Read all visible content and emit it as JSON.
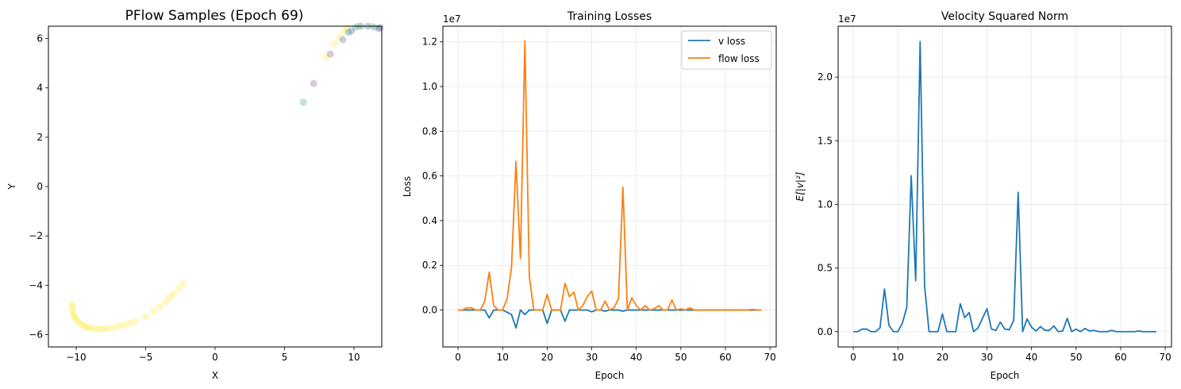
{
  "colors": {
    "v_loss": "#1f77b4",
    "flow_loss": "#ff7f0e",
    "norm": "#1f77b4",
    "yellow": "#fde725",
    "teal": "#21918c",
    "purple": "#6b3d8a",
    "blue": "#3b528b",
    "green": "#5ec962",
    "grid": "#e6e6e6"
  },
  "chart_data": [
    {
      "type": "scatter",
      "title": "PFlow Samples (Epoch 69)",
      "xlabel": "X",
      "ylabel": "Y",
      "xlim": [
        -12,
        12
      ],
      "ylim": [
        -6.5,
        6.5
      ],
      "xticks": [
        -10,
        -5,
        0,
        5,
        10
      ],
      "xtick_labels": [
        "−10",
        "−5",
        "0",
        "5",
        "10"
      ],
      "yticks": [
        -6,
        -4,
        -2,
        0,
        2,
        4,
        6
      ],
      "ytick_labels": [
        "−6",
        "−4",
        "−2",
        "0",
        "2",
        "4",
        "6"
      ],
      "grid": false,
      "series": [
        {
          "color": "yellow",
          "points": [
            [
              -10.3,
              -4.75
            ],
            [
              -10.3,
              -4.9
            ],
            [
              -10.25,
              -5.05
            ],
            [
              -10.2,
              -5.2
            ],
            [
              -10.1,
              -5.3
            ],
            [
              -10.0,
              -5.4
            ],
            [
              -9.8,
              -5.5
            ],
            [
              -9.6,
              -5.58
            ],
            [
              -9.4,
              -5.65
            ],
            [
              -9.2,
              -5.7
            ],
            [
              -9.0,
              -5.73
            ],
            [
              -8.7,
              -5.76
            ],
            [
              -8.4,
              -5.77
            ],
            [
              -8.1,
              -5.77
            ],
            [
              -7.8,
              -5.75
            ],
            [
              -7.4,
              -5.72
            ],
            [
              -7.0,
              -5.68
            ],
            [
              -6.6,
              -5.62
            ],
            [
              -6.2,
              -5.55
            ],
            [
              -5.8,
              -5.47
            ],
            [
              -5.0,
              -5.28
            ],
            [
              -4.4,
              -5.05
            ],
            [
              -4.0,
              -4.88
            ],
            [
              -3.6,
              -4.68
            ],
            [
              -3.3,
              -4.5
            ],
            [
              -3.0,
              -4.35
            ],
            [
              -2.6,
              -4.12
            ],
            [
              -2.3,
              -3.92
            ],
            [
              8.0,
              5.25
            ],
            [
              8.6,
              5.8
            ],
            [
              9.0,
              6.05
            ],
            [
              9.3,
              6.3
            ],
            [
              9.5,
              6.45
            ]
          ]
        },
        {
          "color": "teal",
          "points": [
            [
              6.35,
              3.42
            ],
            [
              9.6,
              6.25
            ],
            [
              10.1,
              6.45
            ],
            [
              11.5,
              6.45
            ]
          ]
        },
        {
          "color": "purple",
          "points": [
            [
              7.1,
              4.18
            ],
            [
              8.3,
              5.37
            ],
            [
              11.8,
              6.4
            ]
          ]
        },
        {
          "color": "blue",
          "points": [
            [
              9.2,
              5.95
            ],
            [
              9.8,
              6.3
            ],
            [
              10.5,
              6.5
            ],
            [
              11.0,
              6.5
            ],
            [
              11.9,
              6.45
            ]
          ]
        },
        {
          "color": "green",
          "points": [
            [
              10.3,
              6.5
            ],
            [
              11.3,
              6.5
            ]
          ]
        }
      ]
    },
    {
      "type": "line",
      "title": "Training Losses",
      "xlabel": "Epoch",
      "ylabel": "Loss",
      "scale_label": "1e7",
      "xlim": [
        -3.4,
        71.4
      ],
      "ylim": [
        -0.165,
        1.27
      ],
      "xticks": [
        0,
        10,
        20,
        30,
        40,
        50,
        60,
        70
      ],
      "yticks": [
        0.0,
        0.2,
        0.4,
        0.6,
        0.8,
        1.0,
        1.2
      ],
      "ytick_labels": [
        "0.0",
        "0.2",
        "0.4",
        "0.6",
        "0.8",
        "1.0",
        "1.2"
      ],
      "grid": true,
      "legend": "top-right",
      "series": [
        {
          "name": "v loss",
          "color": "v_loss",
          "x": [
            0,
            1,
            2,
            3,
            4,
            5,
            6,
            7,
            8,
            9,
            10,
            11,
            12,
            13,
            14,
            15,
            16,
            17,
            18,
            19,
            20,
            21,
            22,
            23,
            24,
            25,
            26,
            27,
            28,
            29,
            30,
            31,
            32,
            33,
            34,
            35,
            36,
            37,
            38,
            39,
            40,
            41,
            42,
            43,
            44,
            45,
            46,
            47,
            48,
            49,
            50,
            51,
            52,
            53,
            54,
            55,
            56,
            57,
            58,
            59,
            60,
            61,
            62,
            63,
            64,
            65,
            66,
            67,
            68
          ],
          "values": [
            0,
            0,
            0,
            0,
            0,
            0,
            0,
            -0.035,
            0,
            0,
            0,
            -0.01,
            -0.02,
            -0.08,
            0,
            -0.02,
            0,
            0,
            0,
            0,
            -0.06,
            0,
            0,
            0,
            -0.05,
            0,
            0,
            0,
            0,
            0,
            -0.008,
            0,
            0,
            -0.005,
            0,
            0,
            0,
            -0.005,
            0,
            0,
            0,
            0,
            0,
            0,
            0,
            0,
            0,
            0,
            0,
            0,
            0,
            0,
            0,
            0,
            0,
            0,
            0,
            0,
            0,
            0,
            0,
            0,
            0,
            0,
            0,
            0,
            0,
            0,
            0
          ]
        },
        {
          "name": "flow loss",
          "color": "flow_loss",
          "x": [
            0,
            1,
            2,
            3,
            4,
            5,
            6,
            7,
            8,
            9,
            10,
            11,
            12,
            13,
            14,
            15,
            16,
            17,
            18,
            19,
            20,
            21,
            22,
            23,
            24,
            25,
            26,
            27,
            28,
            29,
            30,
            31,
            32,
            33,
            34,
            35,
            36,
            37,
            38,
            39,
            40,
            41,
            42,
            43,
            44,
            45,
            46,
            47,
            48,
            49,
            50,
            51,
            52,
            53,
            54,
            55,
            56,
            57,
            58,
            59,
            60,
            61,
            62,
            63,
            64,
            65,
            66,
            67,
            68
          ],
          "values": [
            0,
            0,
            0.01,
            0.01,
            0,
            0,
            0.04,
            0.17,
            0.02,
            0,
            0,
            0.05,
            0.19,
            0.665,
            0.23,
            1.205,
            0.15,
            0,
            0,
            0,
            0.07,
            0,
            0,
            0,
            0.12,
            0.06,
            0.08,
            0,
            0.02,
            0.06,
            0.085,
            0,
            0,
            0.04,
            0,
            0.01,
            0.05,
            0.55,
            0,
            0.055,
            0.02,
            0,
            0.02,
            0,
            0.005,
            0.02,
            0,
            0,
            0.045,
            0,
            0.005,
            0,
            0.01,
            0,
            0,
            0,
            0,
            0,
            0,
            0,
            0,
            0,
            0,
            0,
            0,
            0,
            0.003,
            0,
            0
          ]
        }
      ]
    },
    {
      "type": "line",
      "title": "Velocity Squared Norm",
      "xlabel": "Epoch",
      "ylabel": "E[|v|²]",
      "scale_label": "1e7",
      "xlim": [
        -3.4,
        71.4
      ],
      "ylim": [
        -0.12,
        2.4
      ],
      "xticks": [
        0,
        10,
        20,
        30,
        40,
        50,
        60,
        70
      ],
      "yticks": [
        0.0,
        0.5,
        1.0,
        1.5,
        2.0
      ],
      "ytick_labels": [
        "0.0",
        "0.5",
        "1.0",
        "1.5",
        "2.0"
      ],
      "grid": true,
      "series": [
        {
          "color": "norm",
          "x": [
            0,
            1,
            2,
            3,
            4,
            5,
            6,
            7,
            8,
            9,
            10,
            11,
            12,
            13,
            14,
            15,
            16,
            17,
            18,
            19,
            20,
            21,
            22,
            23,
            24,
            25,
            26,
            27,
            28,
            29,
            30,
            31,
            32,
            33,
            34,
            35,
            36,
            37,
            38,
            39,
            40,
            41,
            42,
            43,
            44,
            45,
            46,
            47,
            48,
            49,
            50,
            51,
            52,
            53,
            54,
            55,
            56,
            57,
            58,
            59,
            60,
            61,
            62,
            63,
            64,
            65,
            66,
            67,
            68
          ],
          "values": [
            0,
            0,
            0.02,
            0.02,
            0,
            0,
            0.03,
            0.335,
            0.05,
            0,
            0,
            0.065,
            0.19,
            1.225,
            0.4,
            2.28,
            0.36,
            0,
            0,
            0,
            0.14,
            0,
            0,
            0,
            0.22,
            0.11,
            0.15,
            0,
            0.03,
            0.105,
            0.18,
            0.02,
            0.01,
            0.075,
            0.02,
            0.015,
            0.09,
            1.095,
            0,
            0.1,
            0.035,
            0.005,
            0.04,
            0.01,
            0.01,
            0.045,
            0,
            0.005,
            0.105,
            0,
            0.02,
            0,
            0.025,
            0.005,
            0.01,
            0,
            0,
            0,
            0.01,
            0,
            0,
            0,
            0,
            0,
            0.005,
            0,
            0,
            0,
            0
          ]
        }
      ]
    }
  ]
}
